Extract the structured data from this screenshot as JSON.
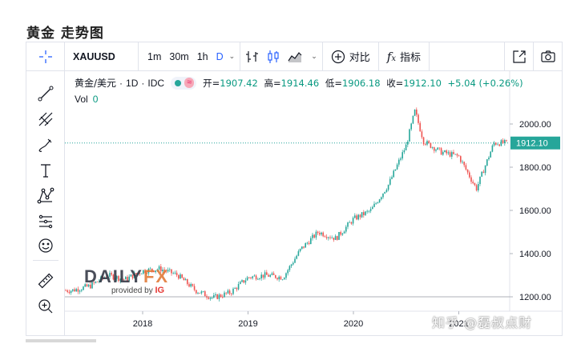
{
  "page": {
    "title": "黄金 走势图"
  },
  "toolbar": {
    "symbol": "XAUUSD",
    "intervals": [
      "1m",
      "30m",
      "1h",
      "D"
    ],
    "active_interval": "D",
    "compare_label": "对比",
    "indicators_label": "指标"
  },
  "legend": {
    "title": "黄金/美元",
    "interval": "1D",
    "source": "IDC",
    "open_label": "开=",
    "open": "1907.42",
    "high_label": "高=",
    "high": "1914.46",
    "low_label": "低=",
    "low": "1906.18",
    "close_label": "收=",
    "close": "1912.10",
    "change": "+5.04 (+0.26%)",
    "vol_label": "Vol",
    "vol_value": "0"
  },
  "price_axis": {
    "ticks": [
      "2000.00",
      "1800.00",
      "1600.00",
      "1400.00",
      "1200.00"
    ],
    "last_price": "1912.10"
  },
  "time_axis": {
    "ticks": [
      "2018",
      "2019",
      "2020",
      "2021"
    ]
  },
  "watermark": {
    "brand_a": "DAILY",
    "brand_b": "FX",
    "provided_by": "provided by",
    "partner": "IG"
  },
  "overlay": {
    "zhihu": "知乎 @磊叔点财"
  },
  "colors": {
    "up": "#26a69a",
    "down": "#ef5350",
    "accent": "#2962ff",
    "last_price_bg": "#26a69a"
  },
  "icons": [
    "crosshair-icon",
    "trend-line-icon",
    "pitchfork-icon",
    "brush-icon",
    "text-icon",
    "pattern-icon",
    "fib-icon",
    "emoji-icon",
    "ruler-icon",
    "zoom-in-icon",
    "compare-plus-icon",
    "fx-icon",
    "fullscreen-icon",
    "camera-icon"
  ],
  "chart_data": {
    "type": "candlestick",
    "x": [
      "2017-05",
      "2017-07",
      "2017-09",
      "2017-11",
      "2018-01",
      "2018-03",
      "2018-05",
      "2018-07",
      "2018-09",
      "2018-11",
      "2019-01",
      "2019-03",
      "2019-05",
      "2019-07",
      "2019-09",
      "2019-11",
      "2020-01",
      "2020-03",
      "2020-05",
      "2020-07",
      "2020-08",
      "2020-09",
      "2020-11",
      "2021-01",
      "2021-03",
      "2021-05"
    ],
    "y": [
      1230,
      1250,
      1300,
      1280,
      1320,
      1330,
      1300,
      1230,
      1195,
      1220,
      1290,
      1300,
      1290,
      1420,
      1500,
      1470,
      1560,
      1600,
      1720,
      1900,
      2060,
      1920,
      1870,
      1850,
      1700,
      1912
    ],
    "ylim": [
      1150,
      2100
    ],
    "ylabel": "",
    "xlabel": "",
    "last": 1912.1
  }
}
